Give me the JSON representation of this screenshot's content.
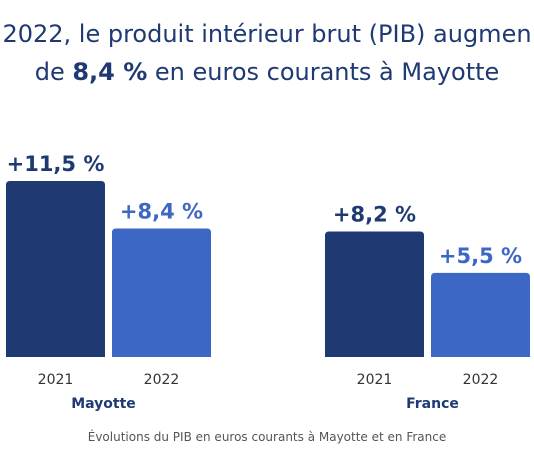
{
  "title": {
    "line1": "2022, le produit intérieur brut (PIB) augmen",
    "line2_prefix": "de ",
    "line2_emphasis": "8,4 %",
    "line2_suffix": " en euros courants à Mayotte"
  },
  "caption": "Évolutions du PIB en euros courants à Mayotte et en France",
  "colors": {
    "title": "#1f3a73",
    "series_2021": "#1f3a73",
    "series_2022": "#3d67c4",
    "label_2021": "#1f3a73",
    "label_2022": "#3d67c4"
  },
  "chart_data": {
    "type": "bar",
    "title": "",
    "xlabel": "",
    "ylabel": "",
    "ylim": [
      0,
      13
    ],
    "grid": false,
    "groups": [
      {
        "name": "Mayotte",
        "bars": [
          {
            "category": "2021",
            "value": 11.5,
            "label": "+11,5 %"
          },
          {
            "category": "2022",
            "value": 8.4,
            "label": "+8,4 %"
          }
        ]
      },
      {
        "name": "France",
        "bars": [
          {
            "category": "2021",
            "value": 8.2,
            "label": "+8,2 %"
          },
          {
            "category": "2022",
            "value": 5.5,
            "label": "+5,5 %"
          }
        ]
      }
    ]
  }
}
